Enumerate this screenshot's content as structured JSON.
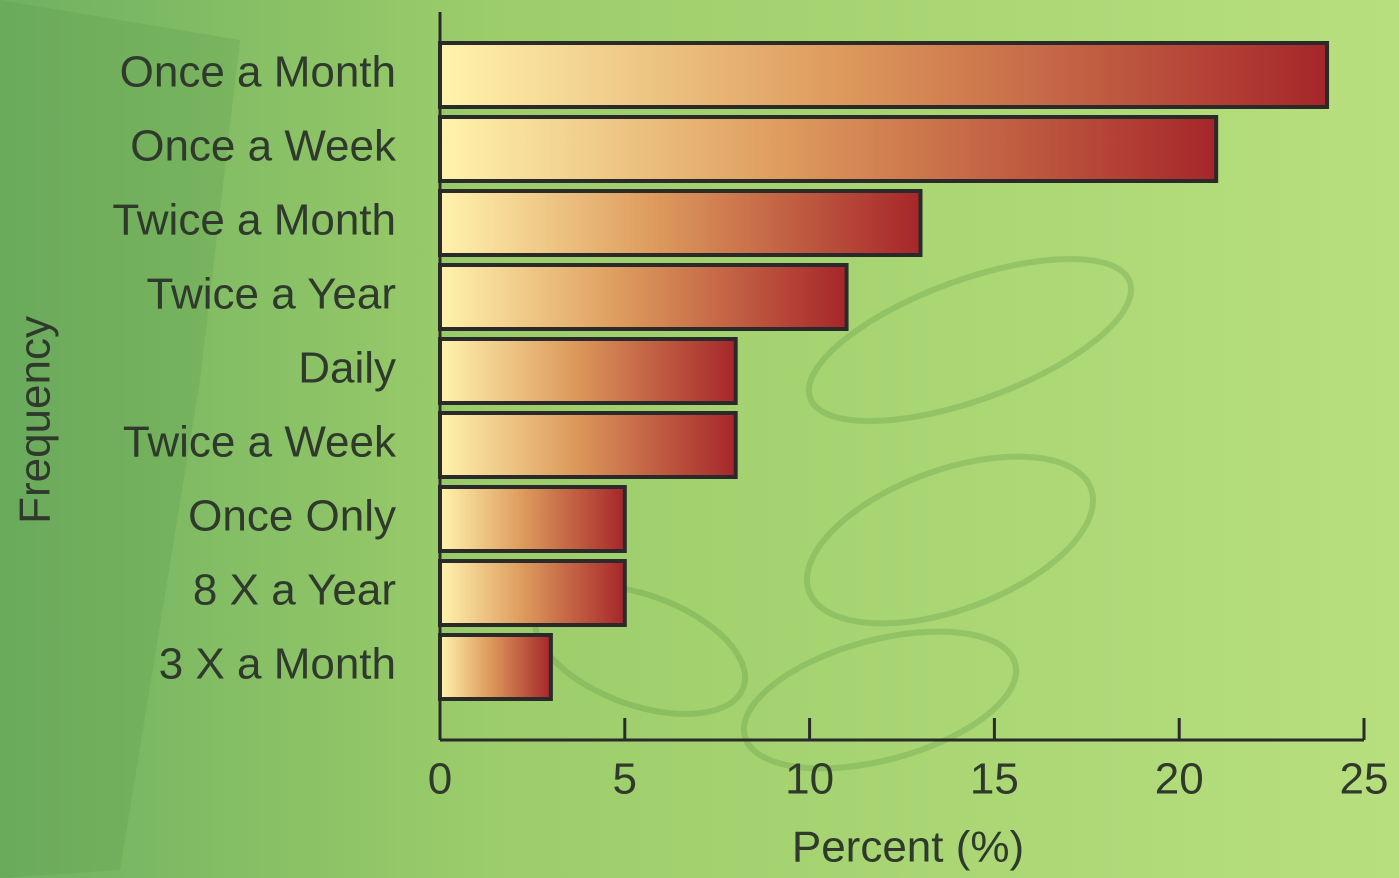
{
  "chart_data": {
    "type": "bar",
    "horizontal": true,
    "categories": [
      "Once a Month",
      "Once a Week",
      "Twice a Month",
      "Twice a Year",
      "Daily",
      "Twice a Week",
      "Once Only",
      "8 X a Year",
      "3 X a Month"
    ],
    "values": [
      24,
      21,
      13,
      11,
      8,
      8,
      5,
      5,
      3
    ],
    "gradient_colors": [
      "#fff3ad",
      "#a6262a"
    ],
    "x_label": "Percent (%)",
    "y_label": "Frequency",
    "xlim": [
      0,
      25
    ],
    "xticks": [
      0,
      5,
      10,
      15,
      20,
      25
    ]
  }
}
